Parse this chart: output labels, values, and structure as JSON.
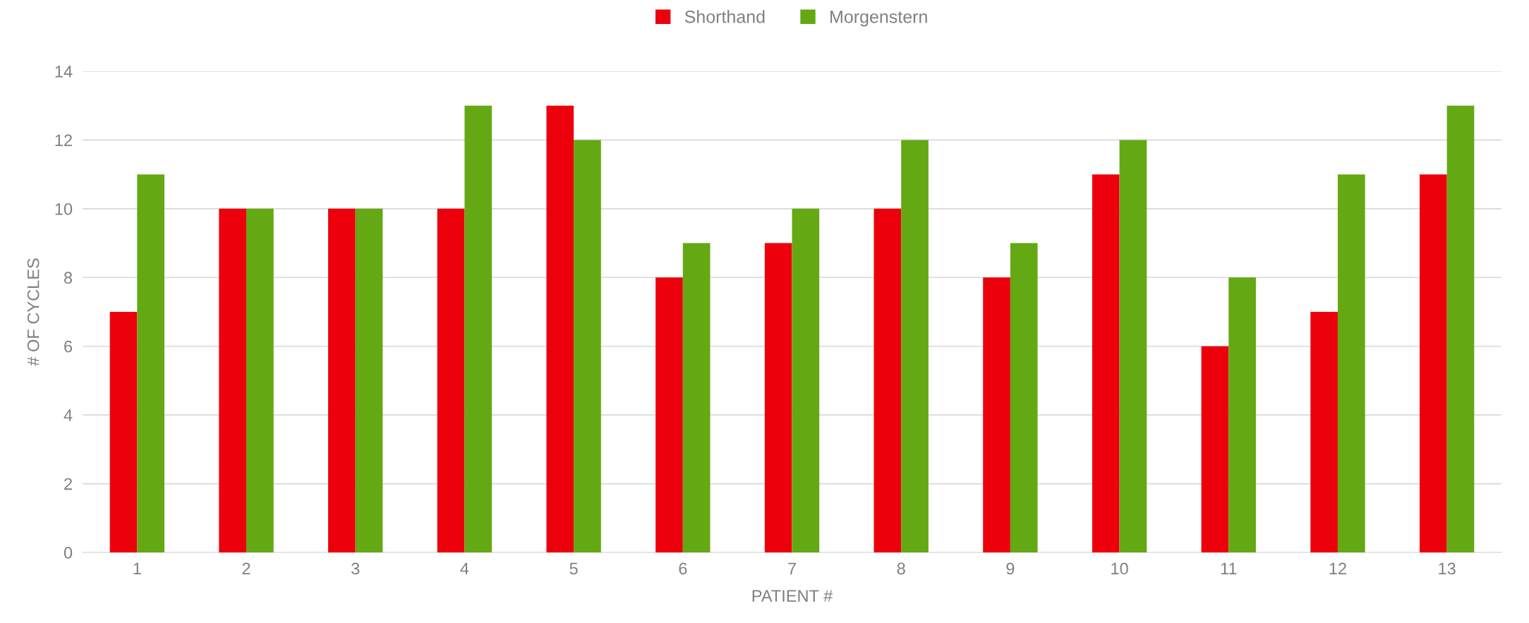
{
  "chart_data": {
    "type": "bar",
    "xlabel": "PATIENT #",
    "ylabel": "# OF CYCLES",
    "categories": [
      "1",
      "2",
      "3",
      "4",
      "5",
      "6",
      "7",
      "8",
      "9",
      "10",
      "11",
      "12",
      "13"
    ],
    "series": [
      {
        "name": "Shorthand",
        "color": "#ec000b",
        "values": [
          7,
          10,
          10,
          10,
          13,
          8,
          9,
          10,
          8,
          11,
          6,
          7,
          11
        ]
      },
      {
        "name": "Morgenstern",
        "color": "#64a814",
        "values": [
          11,
          10,
          10,
          13,
          12,
          9,
          10,
          12,
          9,
          12,
          8,
          11,
          13
        ]
      }
    ],
    "ylim": [
      0,
      14
    ],
    "yticks": [
      0,
      2,
      4,
      6,
      8,
      10,
      12,
      14
    ],
    "grid": "y",
    "legend": "top"
  }
}
